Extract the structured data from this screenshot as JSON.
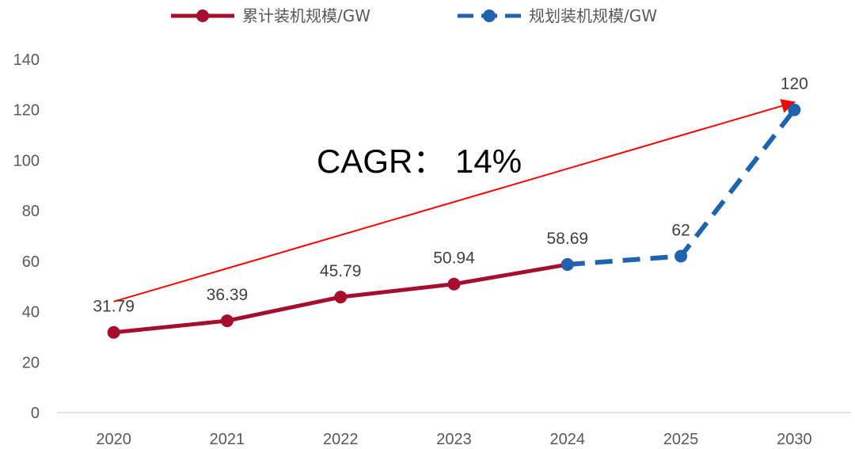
{
  "chart_data": {
    "type": "line",
    "categories": [
      "2020",
      "2021",
      "2022",
      "2023",
      "2024",
      "2025",
      "2030"
    ],
    "y_ticks": [
      "0",
      "20",
      "40",
      "60",
      "80",
      "100",
      "120",
      "140"
    ],
    "ylim": [
      0,
      140
    ],
    "grid": false,
    "legend_position": "top",
    "series": [
      {
        "name": "累计装机规模/GW",
        "style": "solid",
        "color": "#A50F2D",
        "x": [
          "2020",
          "2021",
          "2022",
          "2023",
          "2024"
        ],
        "values": [
          31.79,
          36.39,
          45.79,
          50.94,
          58.69
        ],
        "labels": [
          "31.79",
          "36.39",
          "45.79",
          "50.94",
          "58.69"
        ]
      },
      {
        "name": "规划装机规模/GW",
        "style": "dashed",
        "color": "#1F63B0",
        "x": [
          "2024",
          "2025",
          "2030"
        ],
        "values": [
          58.69,
          62,
          120
        ],
        "labels": [
          "",
          "62",
          "120"
        ]
      }
    ],
    "annotation": {
      "text": "CAGR： 14%",
      "arrow_color": "#FF0000",
      "arrow_from": {
        "x": "2020",
        "y": 44
      },
      "arrow_to": {
        "x": "2030",
        "y": 123
      }
    }
  }
}
